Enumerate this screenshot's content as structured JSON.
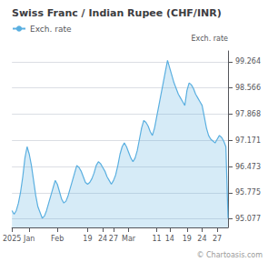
{
  "chart_data": {
    "type": "area",
    "title": "Swiss Franc / Indian Rupee (CHF/INR)",
    "y_label": "Exch. rate",
    "annotations": [
      "© Chartoasis.com"
    ],
    "legend": "top-left",
    "grid": true,
    "categories": [
      "2025",
      null,
      null,
      null,
      null,
      null,
      null,
      null,
      "Jan",
      null,
      null,
      null,
      null,
      null,
      null,
      null,
      null,
      null,
      null,
      null,
      null,
      "Feb",
      null,
      null,
      null,
      null,
      null,
      null,
      null,
      null,
      null,
      null,
      null,
      null,
      null,
      "19",
      null,
      null,
      null,
      null,
      null,
      null,
      "24",
      null,
      null,
      null,
      null,
      "27",
      null,
      null,
      null,
      null,
      null,
      null,
      "Mar",
      null,
      null,
      null,
      null,
      null,
      null,
      null,
      null,
      null,
      null,
      null,
      null,
      "11",
      null,
      null,
      null,
      null,
      null,
      "14",
      null,
      null,
      null,
      null,
      null,
      null,
      null,
      "19",
      null,
      null,
      null,
      null,
      null,
      null,
      "24",
      null,
      null,
      null,
      null,
      null,
      null,
      "27",
      null,
      null,
      null,
      null,
      null
    ],
    "series": [
      {
        "name": "Exch. rate",
        "color": "#5aafe0",
        "values": [
          95.3,
          95.2,
          95.3,
          95.5,
          95.8,
          96.2,
          96.7,
          97.0,
          96.8,
          96.5,
          96.1,
          95.7,
          95.4,
          95.25,
          95.1,
          95.15,
          95.3,
          95.5,
          95.7,
          95.9,
          96.1,
          96.0,
          95.8,
          95.6,
          95.5,
          95.55,
          95.7,
          95.9,
          96.1,
          96.3,
          96.5,
          96.45,
          96.35,
          96.2,
          96.05,
          96.0,
          96.05,
          96.15,
          96.3,
          96.5,
          96.6,
          96.55,
          96.45,
          96.35,
          96.2,
          96.1,
          96.0,
          96.1,
          96.25,
          96.5,
          96.8,
          97.0,
          97.1,
          97.0,
          96.85,
          96.7,
          96.6,
          96.7,
          96.9,
          97.2,
          97.5,
          97.7,
          97.65,
          97.55,
          97.4,
          97.3,
          97.5,
          97.8,
          98.1,
          98.4,
          98.7,
          99.0,
          99.3,
          99.1,
          98.9,
          98.7,
          98.55,
          98.4,
          98.3,
          98.2,
          98.1,
          98.5,
          98.7,
          98.65,
          98.55,
          98.4,
          98.3,
          98.2,
          98.1,
          97.8,
          97.5,
          97.3,
          97.2,
          97.15,
          97.1,
          97.2,
          97.3,
          97.25,
          97.15,
          97.0,
          95.1
        ]
      }
    ],
    "ylim": [
      94.85,
      99.55
    ],
    "yticks": [
      95.077,
      95.775,
      96.473,
      97.171,
      97.868,
      98.566,
      99.264
    ]
  }
}
